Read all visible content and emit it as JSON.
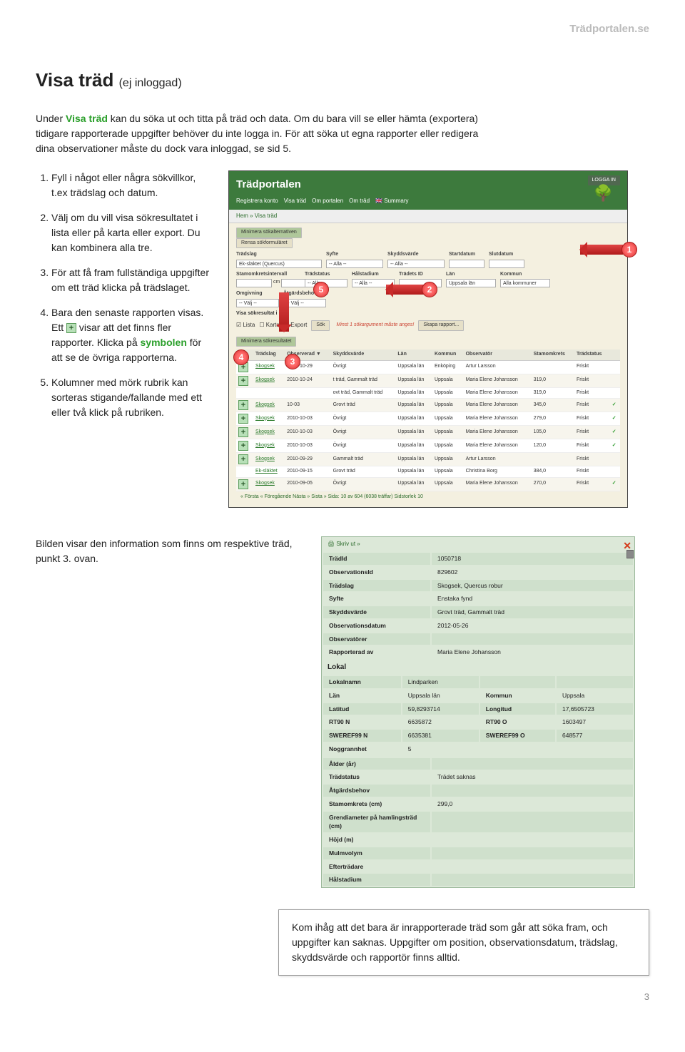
{
  "header": {
    "site": "Trädportalen.se"
  },
  "title": {
    "main": "Visa träd",
    "sub": "(ej inloggad)"
  },
  "intro": {
    "pre": "Under ",
    "key": "Visa träd",
    "post": " kan du söka ut och titta på träd och data. Om du bara vill se eller hämta (exportera) tidigare rapporterade uppgifter behöver du inte logga in. För att söka ut egna rapporter eller redigera dina observationer måste du dock vara inloggad, se sid 5."
  },
  "steps": [
    "Fyll i något eller några sökvillkor, t.ex trädslag och datum.",
    "Välj om du vill visa sökresultatet i lista eller på karta eller export. Du kan kombinera alla tre.",
    "För att få fram fullständiga uppgifter om ett träd klicka på trädslaget.",
    {
      "p1": "Bara den senaste rapporten visas. Ett ",
      "p2": " visar att det finns fler rapporter. Klicka på ",
      "sym": "symbolen",
      "p3": " för att se de övriga rapporterna."
    },
    "Kolumner med mörk rubrik kan sorteras stigande/fallande med ett eller två klick på rubriken."
  ],
  "app": {
    "title": "Trädportalen",
    "login": "LOGGA IN",
    "menu": [
      "Registrera konto",
      "Visa träd",
      "Om portalen",
      "Om träd",
      "Summary"
    ],
    "breadcrumb": "Hem » Visa träd",
    "btn_min": "Minimera sökalternativen",
    "btn_clear": "Rensa sökformuläret",
    "labels": {
      "tradslag": "Trädslag",
      "syfte": "Syfte",
      "skydd": "Skyddsvärde",
      "start": "Startdatum",
      "slut": "Slutdatum",
      "stamint": "Stamomkretsintervall",
      "tradstatus": "Trädstatus",
      "halst": "Hålstadium",
      "tradid": "Trädets ID",
      "lan": "Län",
      "kommun": "Kommun",
      "omgiv": "Omgivning",
      "atgard": "Åtgärdsbehov",
      "visa": "Visa sökresultat i"
    },
    "vals": {
      "eksl": "Ek-släktet (Quercus)",
      "alla": "-- Alla --",
      "valj": "-- Välj --",
      "cm": "cm",
      "lan": "Uppsala län",
      "kommun": "Alla kommuner"
    },
    "check_lista": "Lista",
    "check_karta": "Karta",
    "check_exp": "Export",
    "btn_sok": "Sök",
    "sok_err": "Minst 1 sökargument måste anges!",
    "btn_rapport": "Skapa rapport...",
    "btn_min2": "Minimera sökresultatet",
    "cols": [
      "",
      "Trädslag",
      "Observerad ▼",
      "Skyddsvärde",
      "Län",
      "Kommun",
      "Observatör",
      "Stamomkrets",
      "Trädstatus",
      ""
    ],
    "rows": [
      [
        "+",
        "Skogsek",
        "2010-10-29",
        "Övrigt",
        "Uppsala län",
        "Enköping",
        "Artur Larsson",
        "",
        "Friskt",
        ""
      ],
      [
        "+",
        "Skogsek",
        "2010-10-24",
        "t träd, Gammalt träd",
        "Uppsala län",
        "Uppsala",
        "Maria Elene Johansson",
        "319,0",
        "Friskt",
        ""
      ],
      [
        "",
        "",
        "",
        "ovt träd, Gammalt träd",
        "Uppsala län",
        "Uppsala",
        "Maria Elene Johansson",
        "319,0",
        "Friskt",
        ""
      ],
      [
        "+",
        "Skogsek",
        "10-03",
        "Grovt träd",
        "Uppsala län",
        "Uppsala",
        "Maria Elene Johansson",
        "345,0",
        "Friskt",
        "✓"
      ],
      [
        "+",
        "Skogsek",
        "2010-10-03",
        "Övrigt",
        "Uppsala län",
        "Uppsala",
        "Maria Elene Johansson",
        "279,0",
        "Friskt",
        "✓"
      ],
      [
        "+",
        "Skogsek",
        "2010-10-03",
        "Övrigt",
        "Uppsala län",
        "Uppsala",
        "Maria Elene Johansson",
        "105,0",
        "Friskt",
        "✓"
      ],
      [
        "+",
        "Skogsek",
        "2010-10-03",
        "Övrigt",
        "Uppsala län",
        "Uppsala",
        "Maria Elene Johansson",
        "120,0",
        "Friskt",
        "✓"
      ],
      [
        "+",
        "Skogsek",
        "2010-09-29",
        "Gammalt träd",
        "Uppsala län",
        "Uppsala",
        "Artur Larsson",
        "",
        "Friskt",
        ""
      ],
      [
        "",
        "Ek-släktet",
        "2010-09-15",
        "Grovt träd",
        "Uppsala län",
        "Uppsala",
        "Christina Borg",
        "384,0",
        "Friskt",
        ""
      ],
      [
        "+",
        "Skogsek",
        "2010-09-05",
        "Övrigt",
        "Uppsala län",
        "Uppsala",
        "Maria Elene Johansson",
        "270,0",
        "Friskt",
        "✓"
      ]
    ],
    "pager": "« Första « Föregående Nästa » Sista » Sida: 10   av 604 (6038 träffar) Sidstorlek 10"
  },
  "callouts": {
    "c1": "1",
    "c2": "2",
    "c3": "3",
    "c4": "4",
    "c5": "5"
  },
  "expl": "Bilden visar den information som finns om respektive träd, punkt 3. ovan.",
  "detail": {
    "print": "Skriv ut »",
    "rows1": [
      [
        "TrädId",
        "1050718"
      ],
      [
        "ObservationsId",
        "829602"
      ],
      [
        "Trädslag",
        "Skogsek, Quercus robur"
      ],
      [
        "Syfte",
        "Enstaka fynd"
      ],
      [
        "Skyddsvärde",
        "Grovt träd, Gammalt träd"
      ],
      [
        "Observationsdatum",
        "2012-05-26"
      ],
      [
        "Observatörer",
        ""
      ],
      [
        "Rapporterad av",
        "Maria Elene Johansson"
      ]
    ],
    "lokal_hdr": "Lokal",
    "lokal": [
      [
        "Lokalnamn",
        "Lindparken",
        "",
        ""
      ],
      [
        "Län",
        "Uppsala län",
        "Kommun",
        "Uppsala"
      ],
      [
        "Latitud",
        "59,8293714",
        "Longitud",
        "17,6505723"
      ],
      [
        "RT90 N",
        "6635872",
        "RT90 O",
        "1603497"
      ],
      [
        "SWEREF99 N",
        "6635381",
        "SWEREF99 O",
        "648577"
      ],
      [
        "Noggrannhet",
        "5",
        "",
        ""
      ]
    ],
    "rows2": [
      [
        "Ålder (år)",
        ""
      ],
      [
        "Trädstatus",
        "Trädet saknas"
      ],
      [
        "Åtgärdsbehov",
        ""
      ],
      [
        "Stamomkrets (cm)",
        "299,0"
      ],
      [
        "Grendiameter på hamlingsträd (cm)",
        ""
      ],
      [
        "Höjd (m)",
        ""
      ],
      [
        "Mulmvolym",
        ""
      ],
      [
        "Efterträdare",
        ""
      ],
      [
        "Hålstadium",
        ""
      ]
    ]
  },
  "note": "Kom ihåg att det bara är inrapporterade träd som går att söka fram, och uppgifter kan saknas. Uppgifter om position, observationsdatum, trädslag, skyddsvärde och rapportör finns alltid.",
  "page_num": "3"
}
